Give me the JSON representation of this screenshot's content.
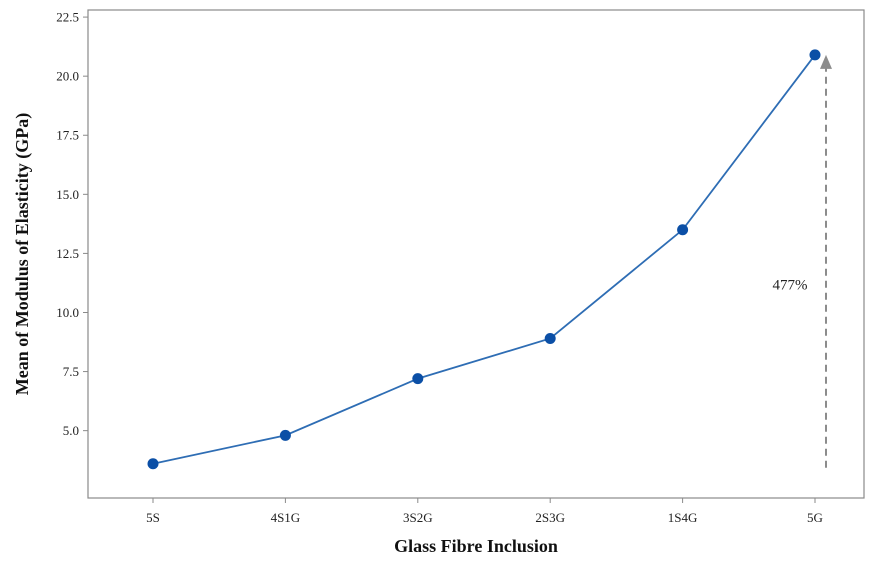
{
  "chart_data": {
    "type": "line",
    "title": "",
    "xlabel": "Glass Fibre Inclusion",
    "ylabel": "Mean of Modulus of Elasticity (GPa)",
    "categories": [
      "5S",
      "4S1G",
      "3S2G",
      "2S3G",
      "1S4G",
      "5G"
    ],
    "series": [
      {
        "values": [
          3.6,
          4.8,
          7.2,
          8.9,
          13.5,
          20.9
        ],
        "color": "#2e6db4",
        "marker_color": "#0b4fa6"
      }
    ],
    "yticks": [
      "5.0",
      "7.5",
      "10.0",
      "12.5",
      "15.0",
      "17.5",
      "20.0",
      "22.5"
    ],
    "ylim": [
      2.15,
      22.8
    ],
    "grid": false,
    "legend": "none",
    "annotation": {
      "text": "477%",
      "arrow_from": 3.6,
      "arrow_to": 20.9,
      "color": "#8c8c8c"
    }
  }
}
